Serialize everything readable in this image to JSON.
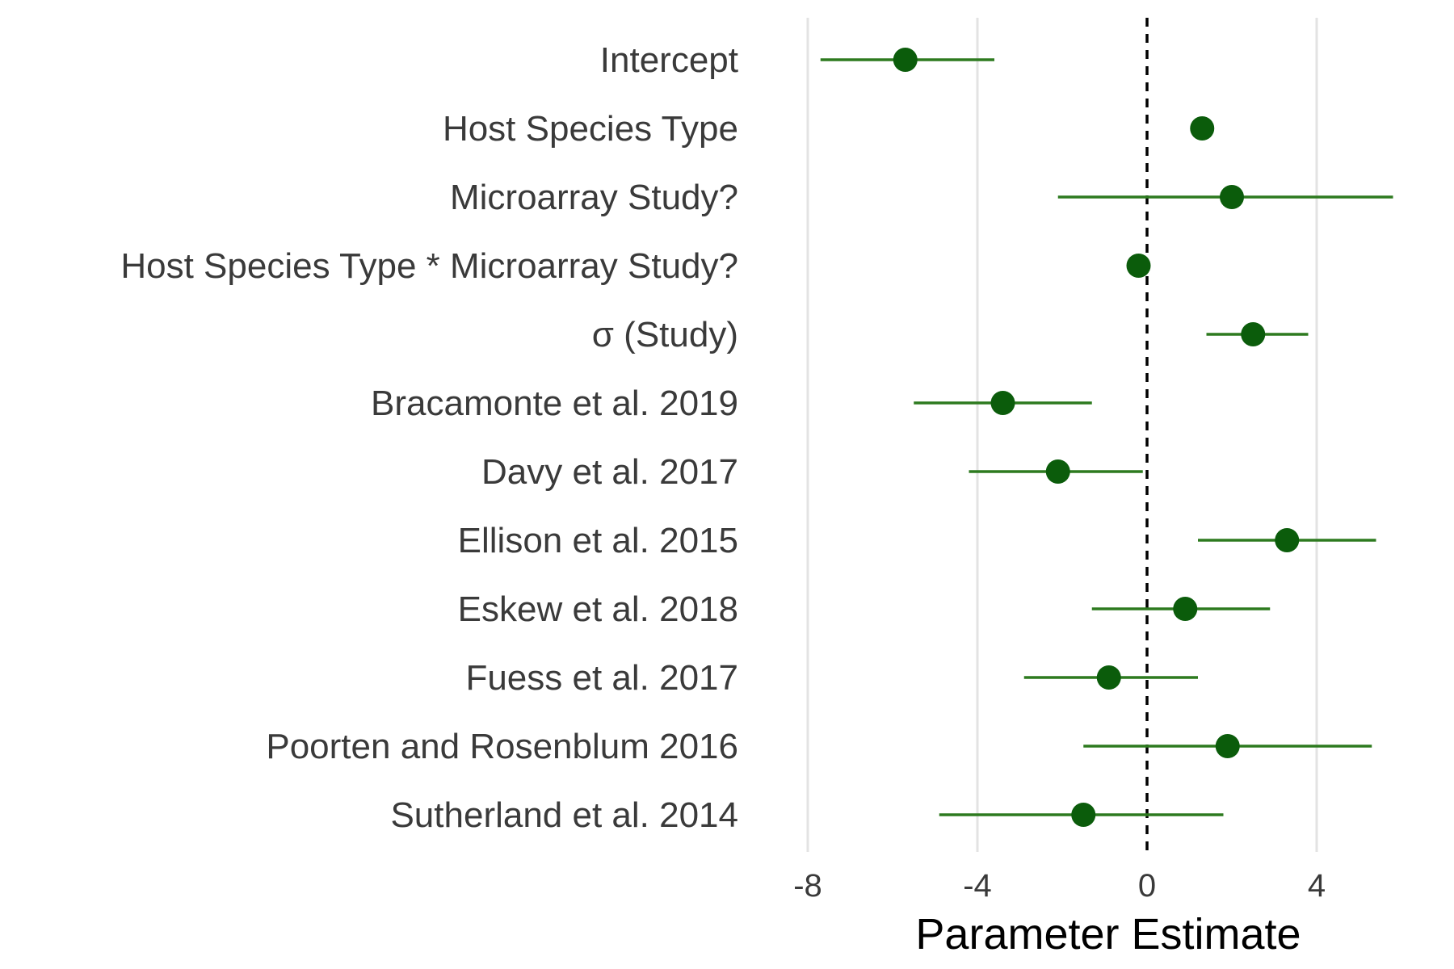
{
  "chart_data": {
    "type": "forest",
    "title": "",
    "xlabel": "Parameter Estimate",
    "ylabel": "",
    "xlim": [
      -9.2,
      6.0
    ],
    "xticks": [
      -8,
      -4,
      0,
      4
    ],
    "xtick_labels": [
      "-8",
      "-4",
      "0",
      "4"
    ],
    "reference_line": 0,
    "grid": "vertical major lines",
    "colors": {
      "point": "#0b5c0b",
      "interval": "#2d7a1f",
      "grid": "#e3e3e3",
      "reference": "#000000"
    },
    "rows": [
      {
        "label": "Intercept",
        "estimate": -5.7,
        "lower": -7.7,
        "upper": -3.6
      },
      {
        "label": "Host Species Type",
        "estimate": 1.3,
        "lower": 1.3,
        "upper": 1.3
      },
      {
        "label": "Microarray Study?",
        "estimate": 2.0,
        "lower": -2.1,
        "upper": 5.8
      },
      {
        "label": "Host Species Type * Microarray Study?",
        "estimate": -0.2,
        "lower": -0.2,
        "upper": -0.2
      },
      {
        "label": "σ (Study)",
        "estimate": 2.5,
        "lower": 1.4,
        "upper": 3.8
      },
      {
        "label": "Bracamonte et al. 2019",
        "estimate": -3.4,
        "lower": -5.5,
        "upper": -1.3
      },
      {
        "label": "Davy et al. 2017",
        "estimate": -2.1,
        "lower": -4.2,
        "upper": -0.1
      },
      {
        "label": "Ellison et al. 2015",
        "estimate": 3.3,
        "lower": 1.2,
        "upper": 5.4
      },
      {
        "label": "Eskew et al. 2018",
        "estimate": 0.9,
        "lower": -1.3,
        "upper": 2.9
      },
      {
        "label": "Fuess et al. 2017",
        "estimate": -0.9,
        "lower": -2.9,
        "upper": 1.2
      },
      {
        "label": "Poorten and Rosenblum 2016",
        "estimate": 1.9,
        "lower": -1.5,
        "upper": 5.3
      },
      {
        "label": "Sutherland et al. 2014",
        "estimate": -1.5,
        "lower": -4.9,
        "upper": 1.8
      }
    ]
  }
}
